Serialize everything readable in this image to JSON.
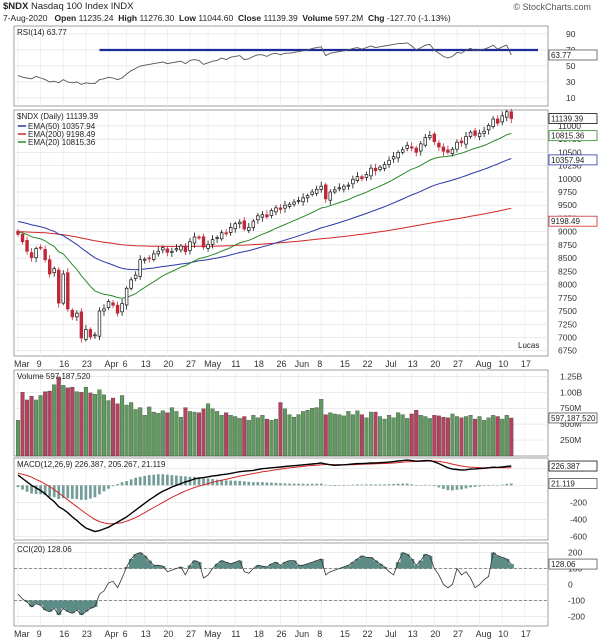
{
  "header": {
    "symbol": "$NDX",
    "name": "Nasdaq 100 Index",
    "exchange": "INDX",
    "brand": "© StockCharts.com",
    "date": "7-Aug-2020",
    "open_label": "Open",
    "open": "11235.24",
    "high_label": "High",
    "high": "11276.30",
    "low_label": "Low",
    "low": "11044.60",
    "close_label": "Close",
    "close": "11139.39",
    "volume_label": "Volume",
    "volume": "597.2M",
    "chg_label": "Chg",
    "chg": "-127.70",
    "chg_pct": "(-1.13%)"
  },
  "annotation": "Lucas",
  "rsi_panel": {
    "label": "RSI(14) 63.77",
    "last": "63.77",
    "ticks": [
      "90",
      "70",
      "50",
      "30",
      "10"
    ],
    "hline": 70
  },
  "price_panel": {
    "label": "$NDX (Daily) 11139.39",
    "last": "11139.39",
    "legend": [
      {
        "text": "EMA(50) 10357.94",
        "color": "#2a36a8"
      },
      {
        "text": "EMA(200) 9198.49",
        "color": "#d0282a"
      },
      {
        "text": "EMA(20) 10815.36",
        "color": "#2a8a2a"
      }
    ],
    "tags": [
      {
        "text": "11139.39",
        "v": 11139,
        "color": "#111111"
      },
      {
        "text": "10815.36",
        "v": 10815,
        "color": "#2a8a2a"
      },
      {
        "text": "10357.94",
        "v": 10357,
        "color": "#2a36a8"
      },
      {
        "text": "9198.49",
        "v": 9198,
        "color": "#d0282a"
      }
    ],
    "ticks": [
      "11000",
      "10750",
      "10500",
      "10250",
      "10000",
      "9750",
      "9500",
      "9250",
      "9000",
      "8750",
      "8500",
      "8250",
      "8000",
      "7750",
      "7500",
      "7250",
      "7000",
      "6750"
    ]
  },
  "volume_panel": {
    "label": "Volume 597,187,520",
    "last": "597,187,520",
    "ticks": [
      "1.25B",
      "1.00B",
      "750M",
      "500M",
      "250M"
    ]
  },
  "macd_panel": {
    "label": "MACD(12,26,9) 226.387, 205.267, 21.119",
    "last1": "226.387",
    "last2": "21.119",
    "ticks": [
      "200",
      "0",
      "-200",
      "-400",
      "-600"
    ]
  },
  "cci_panel": {
    "label": "CCI(20) 128.06",
    "last": "128.06",
    "ticks": [
      "200",
      "100",
      "0",
      "-100",
      "-200"
    ]
  },
  "colors": {
    "up": "#2a8a2a",
    "down": "#c0283a",
    "vol_up": "#5f9a5f",
    "vol_down": "#b5425e",
    "ema50": "#2a36a8",
    "ema200": "#d0282a",
    "ema20": "#2a8a2a",
    "macd_line": "#000000",
    "signal_line": "#d0282a",
    "rsi_line": "#555555",
    "rsi_hline": "#1a2a9a",
    "cci_fill": "#5d8c86"
  },
  "chart_data": {
    "type": "candlestick",
    "title": "$NDX Nasdaq 100 Index INDX",
    "x_labels": [
      {
        "text": "Mar",
        "i": 0
      },
      {
        "text": "9",
        "i": 5
      },
      {
        "text": "16",
        "i": 10
      },
      {
        "text": "23",
        "i": 15
      },
      {
        "text": "Apr",
        "i": 20
      },
      {
        "text": "6",
        "i": 24
      },
      {
        "text": "13",
        "i": 28
      },
      {
        "text": "20",
        "i": 33
      },
      {
        "text": "27",
        "i": 38
      },
      {
        "text": "May",
        "i": 42
      },
      {
        "text": "11",
        "i": 48
      },
      {
        "text": "18",
        "i": 53
      },
      {
        "text": "26",
        "i": 58
      },
      {
        "text": "Jun",
        "i": 62
      },
      {
        "text": "8",
        "i": 67
      },
      {
        "text": "15",
        "i": 72
      },
      {
        "text": "22",
        "i": 77
      },
      {
        "text": "Jul",
        "i": 82
      },
      {
        "text": "13",
        "i": 87
      },
      {
        "text": "20",
        "i": 92
      },
      {
        "text": "27",
        "i": 97
      },
      {
        "text": "Aug",
        "i": 102
      },
      {
        "text": "10",
        "i": 107
      },
      {
        "text": "17",
        "i": 112
      }
    ],
    "price_ylim": [
      6650,
      11300
    ],
    "close": [
      8950,
      8810,
      8630,
      8510,
      8680,
      8690,
      8470,
      8200,
      8300,
      7650,
      8200,
      7540,
      7390,
      7460,
      6990,
      7150,
      7010,
      7050,
      7500,
      7540,
      7680,
      7610,
      7460,
      7640,
      7930,
      8090,
      8180,
      8470,
      8480,
      8500,
      8580,
      8630,
      8700,
      8610,
      8630,
      8680,
      8730,
      8620,
      8810,
      8900,
      8880,
      8710,
      8760,
      8850,
      8890,
      8980,
      8960,
      9080,
      9150,
      9180,
      9050,
      9080,
      9200,
      9300,
      9320,
      9280,
      9400,
      9450,
      9420,
      9500,
      9520,
      9560,
      9590,
      9640,
      9680,
      9750,
      9800,
      9860,
      9620,
      9750,
      9790,
      9830,
      9860,
      9880,
      9990,
      10040,
      10000,
      10080,
      10200,
      10150,
      10220,
      10270,
      10350,
      10420,
      10500,
      10550,
      10630,
      10580,
      10500,
      10660,
      10780,
      10820,
      10700,
      10600,
      10520,
      10500,
      10560,
      10690,
      10680,
      10800,
      10880,
      10820,
      10860,
      10900,
      11010,
      11130,
      11050,
      11190,
      11267,
      11139
    ],
    "volume_m": [
      560,
      1000,
      880,
      940,
      880,
      950,
      1010,
      1020,
      1120,
      1240,
      1110,
      1070,
      1080,
      1010,
      1000,
      1080,
      990,
      970,
      1040,
      960,
      870,
      910,
      820,
      950,
      800,
      840,
      730,
      760,
      640,
      770,
      690,
      670,
      710,
      680,
      760,
      700,
      610,
      760,
      700,
      690,
      680,
      740,
      820,
      740,
      700,
      640,
      680,
      640,
      620,
      590,
      620,
      560,
      640,
      600,
      640,
      580,
      560,
      580,
      840,
      740,
      650,
      610,
      650,
      700,
      720,
      750,
      760,
      890,
      650,
      680,
      660,
      650,
      630,
      700,
      650,
      710,
      650,
      600,
      690,
      690,
      620,
      580,
      640,
      600,
      680,
      650,
      590,
      660,
      720,
      640,
      620,
      590,
      640,
      630,
      610,
      600,
      660,
      620,
      600,
      620,
      640,
      580,
      620,
      560,
      600,
      640,
      620,
      580,
      640,
      597
    ],
    "volume_ylim": [
      0,
      1350
    ],
    "rsi": [
      38,
      36,
      35,
      34,
      37,
      35,
      33,
      30,
      31,
      29,
      33,
      30,
      29,
      30,
      27,
      29,
      28,
      28,
      33,
      34,
      36,
      35,
      33,
      35,
      40,
      44,
      47,
      50,
      51,
      52,
      53,
      54,
      55,
      53,
      54,
      55,
      56,
      53,
      57,
      58,
      57,
      52,
      54,
      56,
      57,
      60,
      58,
      61,
      62,
      63,
      58,
      59,
      62,
      64,
      64,
      62,
      65,
      66,
      64,
      66,
      66,
      67,
      68,
      69,
      70,
      72,
      73,
      74,
      63,
      66,
      67,
      68,
      69,
      70,
      72,
      73,
      71,
      73,
      75,
      73,
      74,
      75,
      76,
      77,
      78,
      78,
      79,
      75,
      70,
      73,
      76,
      77,
      70,
      66,
      62,
      60,
      62,
      67,
      66,
      70,
      72,
      69,
      70,
      71,
      73,
      76,
      71,
      74,
      76,
      63.77
    ],
    "rsi_ylim": [
      0,
      100
    ],
    "macd": [
      120,
      80,
      40,
      0,
      -30,
      -60,
      -100,
      -150,
      -190,
      -250,
      -280,
      -320,
      -370,
      -410,
      -460,
      -500,
      -520,
      -540,
      -530,
      -510,
      -490,
      -460,
      -430,
      -400,
      -370,
      -330,
      -290,
      -250,
      -210,
      -170,
      -135,
      -100,
      -70,
      -45,
      -20,
      0,
      20,
      40,
      55,
      75,
      85,
      90,
      100,
      110,
      115,
      125,
      130,
      140,
      150,
      160,
      165,
      170,
      175,
      185,
      195,
      200,
      205,
      210,
      215,
      220,
      225,
      230,
      235,
      240,
      245,
      250,
      255,
      262,
      250,
      240,
      235,
      238,
      240,
      245,
      250,
      255,
      255,
      258,
      262,
      262,
      265,
      268,
      272,
      278,
      285,
      290,
      295,
      290,
      282,
      285,
      290,
      290,
      275,
      255,
      230,
      205,
      190,
      185,
      178,
      182,
      190,
      192,
      196,
      200,
      205,
      212,
      210,
      215,
      222,
      226.387
    ],
    "signal": [
      140,
      130,
      115,
      95,
      70,
      45,
      15,
      -15,
      -50,
      -90,
      -130,
      -170,
      -210,
      -250,
      -290,
      -330,
      -365,
      -400,
      -425,
      -440,
      -450,
      -450,
      -445,
      -436,
      -420,
      -400,
      -378,
      -350,
      -320,
      -290,
      -260,
      -230,
      -200,
      -170,
      -140,
      -115,
      -90,
      -65,
      -45,
      -25,
      -10,
      5,
      20,
      35,
      48,
      60,
      72,
      84,
      96,
      108,
      118,
      128,
      138,
      148,
      158,
      166,
      174,
      182,
      190,
      197,
      204,
      210,
      216,
      222,
      228,
      232,
      236,
      242,
      244,
      244,
      243,
      242,
      241,
      241,
      242,
      244,
      246,
      248,
      250,
      252,
      254,
      256,
      259,
      262,
      266,
      270,
      275,
      278,
      280,
      281,
      283,
      285,
      284,
      280,
      272,
      261,
      249,
      237,
      226,
      218,
      213,
      210,
      208,
      207,
      206,
      206,
      206,
      206,
      205,
      205.267
    ],
    "macd_ylim": [
      -640,
      320
    ],
    "cci": [
      -60,
      -90,
      -110,
      -140,
      -120,
      -130,
      -160,
      -170,
      -150,
      -190,
      -150,
      -170,
      -180,
      -160,
      -190,
      -170,
      -150,
      -140,
      -60,
      -40,
      10,
      20,
      -20,
      40,
      110,
      160,
      190,
      200,
      180,
      150,
      120,
      120,
      115,
      80,
      90,
      100,
      110,
      60,
      120,
      150,
      140,
      40,
      60,
      100,
      130,
      150,
      140,
      130,
      140,
      150,
      80,
      70,
      100,
      120,
      115,
      110,
      130,
      140,
      120,
      140,
      150,
      150,
      120,
      120,
      130,
      140,
      150,
      160,
      60,
      80,
      90,
      100,
      110,
      120,
      140,
      160,
      180,
      170,
      170,
      150,
      130,
      110,
      80,
      60,
      140,
      200,
      190,
      160,
      120,
      150,
      190,
      180,
      100,
      60,
      0,
      -20,
      0,
      100,
      60,
      80,
      40,
      -20,
      0,
      30,
      50,
      200,
      180,
      170,
      160,
      128.06
    ],
    "cci_ylim": [
      -260,
      260
    ],
    "ema50_end": 10357.94,
    "ema200_end": 9198.49,
    "ema20_end": 10815.36
  }
}
